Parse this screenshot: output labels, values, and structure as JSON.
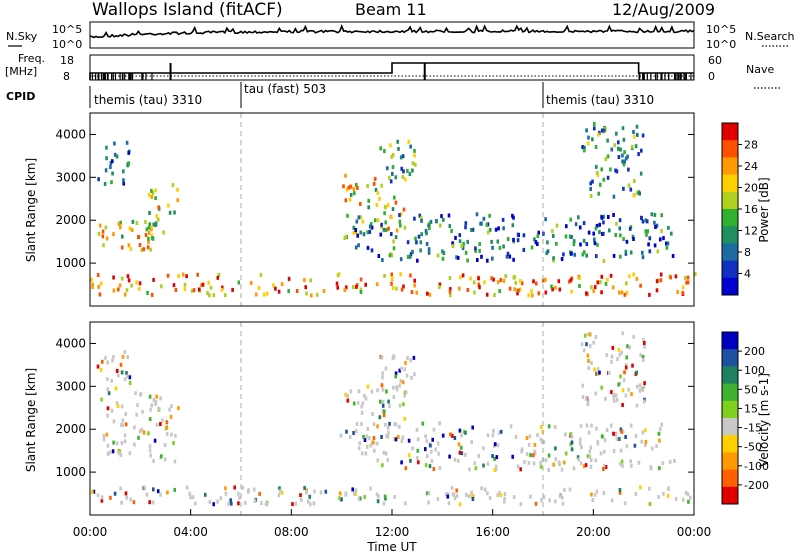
{
  "header": {
    "station": "Wallops Island (fitACF)",
    "beam": "Beam 11",
    "date": "12/Aug/2009"
  },
  "noise_panel": {
    "left_label": "N.Sky",
    "left_ticks": [
      "10^5",
      "10^0"
    ],
    "right_label": "N.Search",
    "right_ticks": [
      "10^5",
      "10^0"
    ]
  },
  "freq_panel": {
    "left_label_1": "Freq.",
    "left_label_2": "[MHz]",
    "left_ticks": [
      "18",
      "8"
    ],
    "right_label": "Nave",
    "right_ticks": [
      "60",
      "0"
    ]
  },
  "cpid": {
    "label": "CPID",
    "segments": [
      {
        "name": "themis (tau) 3310",
        "start_hour": 0
      },
      {
        "name": "tau (fast) 503",
        "start_hour": 6
      },
      {
        "name": "themis (tau) 3310",
        "start_hour": 18
      }
    ]
  },
  "colorbars": {
    "power": {
      "title": "Power [dB]",
      "ticks": [
        "28",
        "24",
        "20",
        "16",
        "12",
        "8",
        "4"
      ],
      "colors": [
        "#e00000",
        "#ff5000",
        "#ff9a00",
        "#ffd000",
        "#b0d020",
        "#30b030",
        "#209060",
        "#1c6ca0",
        "#1030c0",
        "#0000d0"
      ]
    },
    "velocity": {
      "title": "Velocity [m s-1]",
      "ticks": [
        "200",
        "100",
        "50",
        "15",
        "-15",
        "-50",
        "-100",
        "-200"
      ],
      "colors": [
        "#0000c0",
        "#2050a0",
        "#208060",
        "#40b030",
        "#80d020",
        "#c8c8c8",
        "#ffd000",
        "#ff9a00",
        "#ff6000",
        "#e00000"
      ]
    }
  },
  "chart_data": [
    {
      "type": "heatmap",
      "name": "power",
      "ylabel": "Slant Range [km]",
      "yticks": [
        "1000",
        "2000",
        "3000",
        "4000"
      ],
      "ylim": [
        0,
        4500
      ],
      "xlim": [
        0,
        24
      ],
      "regions": [
        {
          "t0": 0,
          "t1": 24,
          "r0": 200,
          "r1": 700,
          "level": 0.75
        },
        {
          "t0": 0.3,
          "t1": 2.6,
          "r0": 1200,
          "r1": 2000,
          "level": 0.6
        },
        {
          "t0": 0.2,
          "t1": 1.6,
          "r0": 2800,
          "r1": 3800,
          "level": 0.25
        },
        {
          "t0": 2.2,
          "t1": 3.5,
          "r0": 1500,
          "r1": 2800,
          "level": 0.55
        },
        {
          "t0": 9.9,
          "t1": 12.5,
          "r0": 1500,
          "r1": 3000,
          "level": 0.6
        },
        {
          "t0": 10.5,
          "t1": 23.2,
          "r0": 1000,
          "r1": 2100,
          "level": 0.25
        },
        {
          "t0": 11.5,
          "t1": 13.0,
          "r0": 2700,
          "r1": 3800,
          "level": 0.4
        },
        {
          "t0": 19.5,
          "t1": 22.0,
          "r0": 2500,
          "r1": 4200,
          "level": 0.35
        }
      ]
    },
    {
      "type": "heatmap",
      "name": "velocity",
      "ylabel": "Slant Range [km]",
      "yticks": [
        "1000",
        "2000",
        "3000",
        "4000"
      ],
      "ylim": [
        0,
        4500
      ],
      "xlim": [
        0,
        24
      ],
      "xlabel": "Time UT",
      "xticks": [
        "00:00",
        "04:00",
        "08:00",
        "12:00",
        "16:00",
        "20:00",
        "00:00"
      ],
      "regions": [
        {
          "t0": 0,
          "t1": 24,
          "r0": 200,
          "r1": 600,
          "level": 0.45
        },
        {
          "t0": 0.3,
          "t1": 3.5,
          "r0": 1200,
          "r1": 2800,
          "level": 0.5
        },
        {
          "t0": 0.2,
          "t1": 1.6,
          "r0": 2800,
          "r1": 3800,
          "level": 0.5
        },
        {
          "t0": 9.9,
          "t1": 12.5,
          "r0": 1500,
          "r1": 3000,
          "level": 0.5
        },
        {
          "t0": 10.5,
          "t1": 23.2,
          "r0": 1000,
          "r1": 2100,
          "level": 0.5
        },
        {
          "t0": 11.5,
          "t1": 13.0,
          "r0": 2700,
          "r1": 3800,
          "level": 0.5
        },
        {
          "t0": 19.5,
          "t1": 22.0,
          "r0": 2500,
          "r1": 4200,
          "level": 0.5
        }
      ]
    }
  ]
}
